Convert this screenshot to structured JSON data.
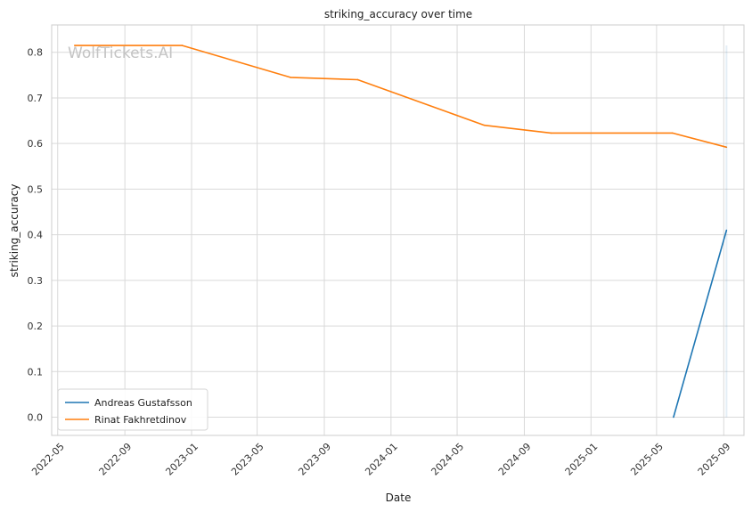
{
  "chart_data": {
    "type": "line",
    "title": "striking_accuracy over time",
    "xlabel": "Date",
    "ylabel": "striking_accuracy",
    "watermark": "WolfTickets.AI",
    "x_ticks": [
      "2022-05",
      "2022-09",
      "2023-01",
      "2023-05",
      "2023-09",
      "2024-01",
      "2024-05",
      "2024-09",
      "2025-01",
      "2025-05",
      "2025-09"
    ],
    "y_ticks": [
      "0.0",
      "0.1",
      "0.2",
      "0.3",
      "0.4",
      "0.5",
      "0.6",
      "0.7",
      "0.8"
    ],
    "ylim": [
      -0.04,
      0.86
    ],
    "xlim": [
      "2022-04-20",
      "2025-10-08"
    ],
    "grid": true,
    "legend_position": "lower-left",
    "series": [
      {
        "name": "Andreas Gustafsson",
        "color": "#1f77b4",
        "points": [
          {
            "x": "2025-06-01",
            "y": 0.0
          },
          {
            "x": "2025-09-06",
            "y": 0.41
          }
        ]
      },
      {
        "name": "Rinat Fakhretdinov",
        "color": "#ff7f0e",
        "points": [
          {
            "x": "2022-06-01",
            "y": 0.815
          },
          {
            "x": "2022-12-15",
            "y": 0.815
          },
          {
            "x": "2023-07-01",
            "y": 0.745
          },
          {
            "x": "2023-11-01",
            "y": 0.74
          },
          {
            "x": "2024-06-20",
            "y": 0.64
          },
          {
            "x": "2024-10-20",
            "y": 0.623
          },
          {
            "x": "2025-05-30",
            "y": 0.623
          },
          {
            "x": "2025-09-06",
            "y": 0.592
          }
        ]
      }
    ]
  }
}
